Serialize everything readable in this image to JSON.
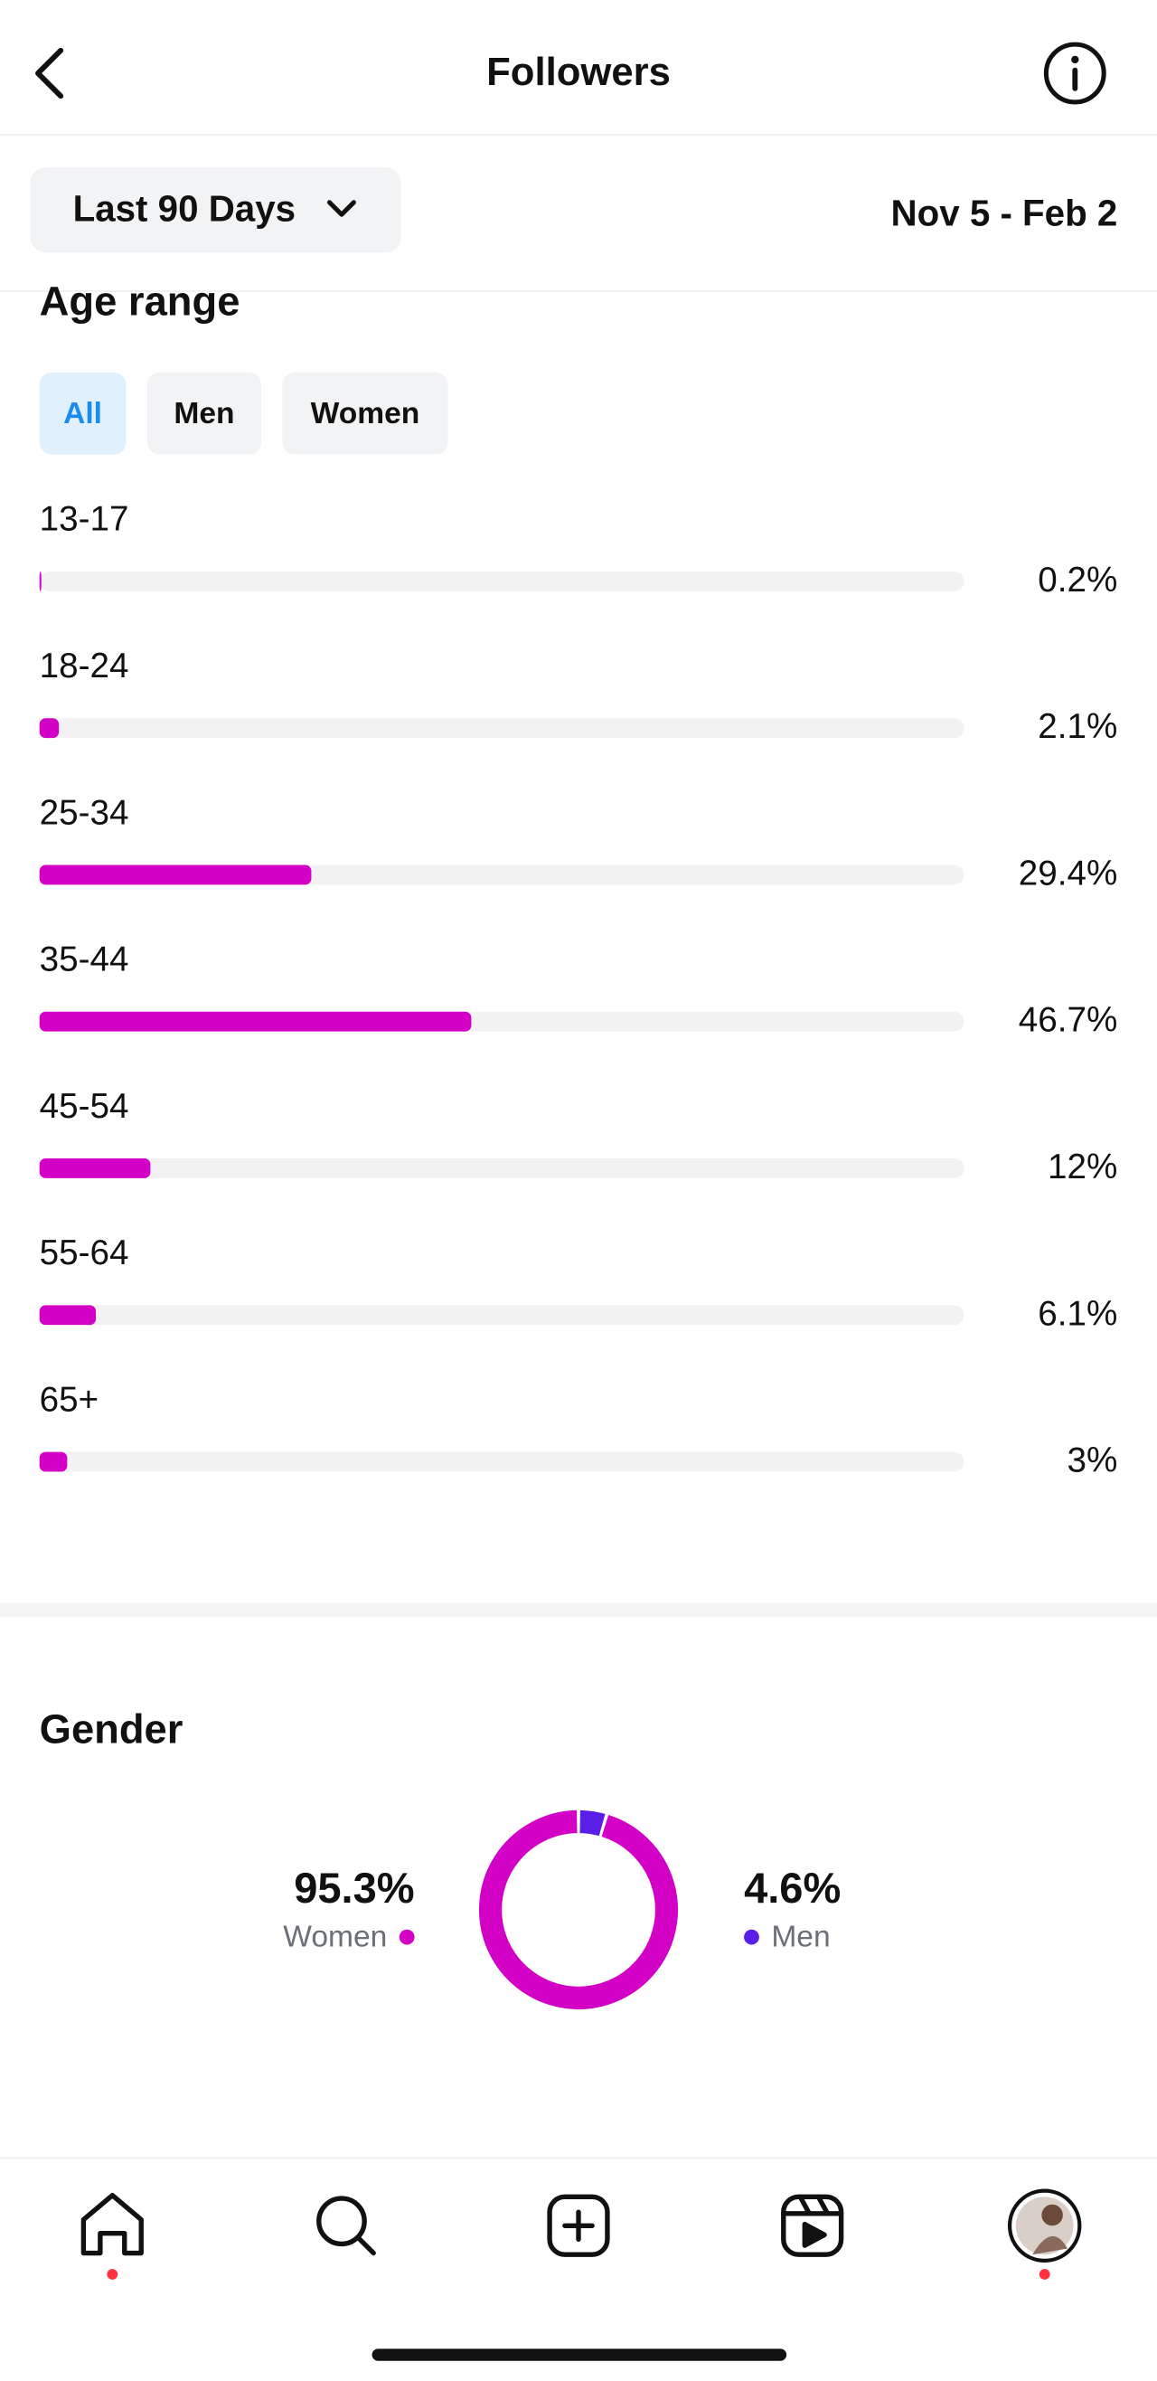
{
  "header": {
    "title": "Followers"
  },
  "filter": {
    "label": "Last 90 Days",
    "date_range": "Nov 5 - Feb 2"
  },
  "chart_data": [
    {
      "type": "bar",
      "title": "Age range",
      "tabs": [
        "All",
        "Men",
        "Women"
      ],
      "categories": [
        "13-17",
        "18-24",
        "25-34",
        "35-44",
        "45-54",
        "55-64",
        "65+"
      ],
      "values": [
        0.2,
        2.1,
        29.4,
        46.7,
        12,
        6.1,
        3
      ],
      "value_labels": [
        "0.2%",
        "2.1%",
        "29.4%",
        "46.7%",
        "12%",
        "6.1%",
        "3%"
      ],
      "xlim": [
        0,
        100
      ],
      "color": "#d300c5"
    },
    {
      "type": "donut",
      "title": "Gender",
      "categories": [
        "Women",
        "Men"
      ],
      "values": [
        95.3,
        4.6
      ],
      "value_labels": [
        "95.3%",
        "4.6%"
      ],
      "colors": [
        "#d300c5",
        "#5a1ee6"
      ]
    }
  ]
}
